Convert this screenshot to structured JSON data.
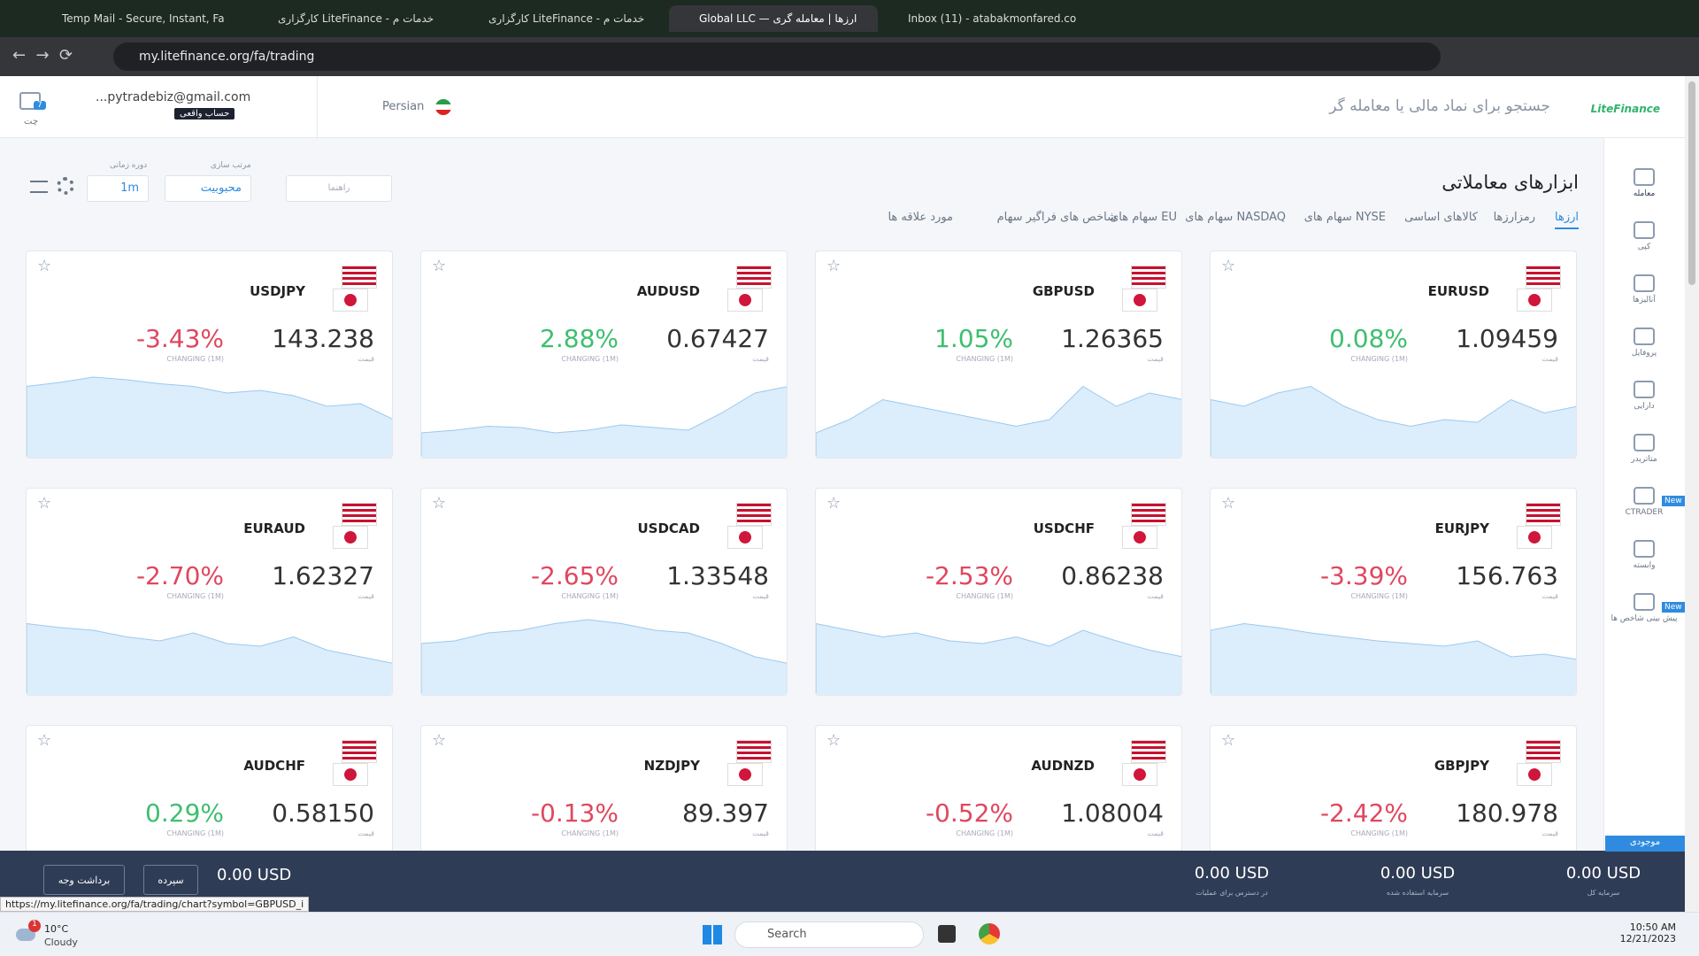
{
  "browser": {
    "tabs": [
      "Temp Mail - Secure, Instant, Fa",
      "کارگزاری LiteFinance - خدمات م",
      "کارگزاری LiteFinance - خدمات م",
      "Global LLC — ارزها | معامله گری",
      "Inbox (11) - atabakmonfared.co"
    ],
    "url": "my.litefinance.org/fa/trading",
    "status_url": "https://my.litefinance.org/fa/trading/chart?symbol=GBPUSD_i"
  },
  "header": {
    "logo": "LiteFinance",
    "search_placeholder": "جستجو برای نماد مالی یا معامله گر",
    "language": "Persian",
    "email": "...pytradebiz@gmail.com",
    "account": "حساب واقعی",
    "chat": "چت",
    "chat_badge": "7"
  },
  "sidebar": {
    "items": [
      "معامله",
      "کپی",
      "آنالیزها",
      "پروفایل",
      "دارایی",
      "متاتریدر",
      "CTRADER",
      "وابسته",
      "پیش بینی شاخص ها"
    ],
    "new_badge": "New"
  },
  "toolbar": {
    "title": "ابزارهای معاملاتی",
    "guide": "راهنما",
    "sort_label": "مرتب سازی",
    "sort_value": "محبوبیت",
    "period_label": "دوره زمانی",
    "period_value": "1m"
  },
  "tabs": [
    "ارزها",
    "رمزارزها",
    "کالاهای اساسی",
    "سهام های NYSE",
    "سهام های NASDAQ",
    "سهام های EU",
    "شاخص های فراگیر سهام",
    "مورد علاقه ها"
  ],
  "change_label": "CHANGING (1M)",
  "price_label": "قیمت",
  "instruments": [
    {
      "symbol": "USDJPY",
      "price": "143.238",
      "change": "-3.43%",
      "color": "#e0475f",
      "spark": [
        55,
        58,
        62,
        60,
        57,
        55,
        50,
        52,
        48,
        40,
        42,
        30
      ]
    },
    {
      "symbol": "AUDUSD",
      "price": "0.67427",
      "change": "2.88%",
      "color": "#3dbf6e",
      "spark": [
        20,
        22,
        25,
        24,
        20,
        22,
        26,
        24,
        22,
        35,
        50,
        55
      ]
    },
    {
      "symbol": "GBPUSD",
      "price": "1.26365",
      "change": "1.05%",
      "color": "#3dbf6e",
      "spark": [
        20,
        30,
        45,
        40,
        35,
        30,
        25,
        30,
        55,
        40,
        50,
        45
      ]
    },
    {
      "symbol": "EURUSD",
      "price": "1.09459",
      "change": "0.08%",
      "color": "#3dbf6e",
      "spark": [
        45,
        40,
        50,
        55,
        40,
        30,
        25,
        30,
        28,
        45,
        35,
        40
      ]
    },
    {
      "symbol": "EURAUD",
      "price": "1.62327",
      "change": "-2.70%",
      "color": "#e0475f",
      "spark": [
        55,
        52,
        50,
        45,
        42,
        48,
        40,
        38,
        45,
        35,
        30,
        25
      ]
    },
    {
      "symbol": "USDCAD",
      "price": "1.33548",
      "change": "-2.65%",
      "color": "#e0475f",
      "spark": [
        40,
        42,
        48,
        50,
        55,
        58,
        55,
        50,
        48,
        40,
        30,
        25
      ]
    },
    {
      "symbol": "USDCHF",
      "price": "0.86238",
      "change": "-2.53%",
      "color": "#e0475f",
      "spark": [
        55,
        50,
        45,
        48,
        42,
        40,
        45,
        38,
        50,
        42,
        35,
        30
      ]
    },
    {
      "symbol": "EURJPY",
      "price": "156.763",
      "change": "-3.39%",
      "color": "#e0475f",
      "spark": [
        50,
        55,
        52,
        48,
        45,
        42,
        40,
        38,
        42,
        30,
        32,
        28
      ]
    },
    {
      "symbol": "AUDCHF",
      "price": "0.58150",
      "change": "0.29%",
      "color": "#3dbf6e"
    },
    {
      "symbol": "NZDJPY",
      "price": "89.397",
      "change": "-0.13%",
      "color": "#e0475f"
    },
    {
      "symbol": "AUDNZD",
      "price": "1.08004",
      "change": "-0.52%",
      "color": "#e0475f"
    },
    {
      "symbol": "GBPJPY",
      "price": "180.978",
      "change": "-2.42%",
      "color": "#e0475f"
    }
  ],
  "footer": {
    "withdraw": "برداشت وجه",
    "deposit": "سپرده",
    "balance": "0.00 USD",
    "stats": [
      {
        "value": "0.00 USD",
        "label": "در دسترس برای عملیات"
      },
      {
        "value": "0.00 USD",
        "label": "سرمایه استفاده شده"
      },
      {
        "value": "0.00 USD",
        "label": "سرمایه کل"
      }
    ],
    "wallet": "موجودی"
  },
  "taskbar": {
    "temperature": "10°C",
    "weather": "Cloudy",
    "search": "Search",
    "time": "10:50 AM",
    "date": "12/21/2023",
    "notification": "1"
  }
}
